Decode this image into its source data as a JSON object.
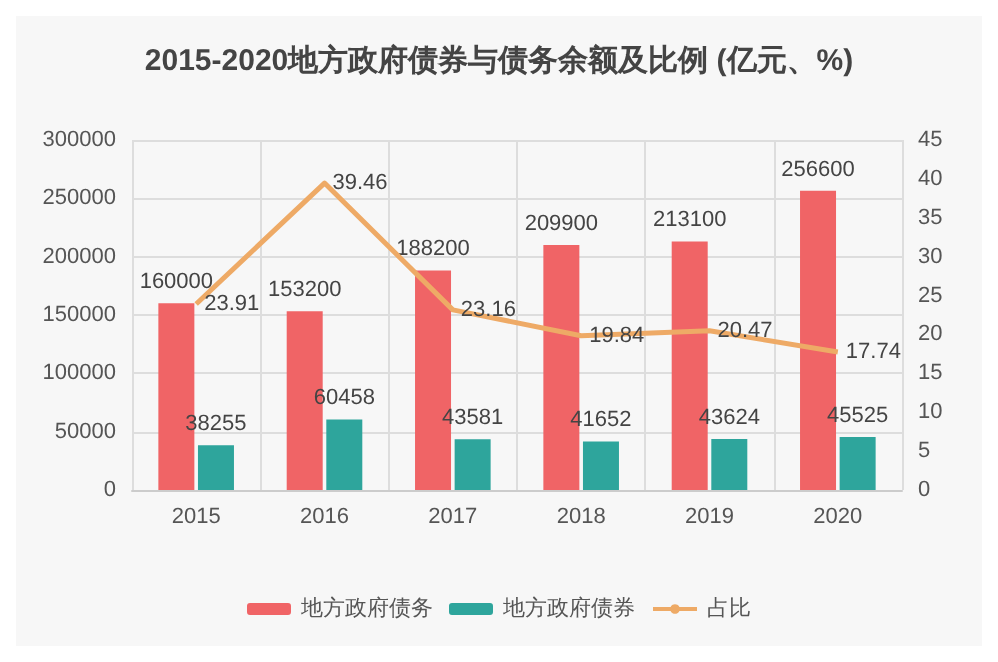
{
  "chart_data": {
    "type": "bar",
    "title": "2015-2020地方政府债券与债务余额及比例 (亿元、%)",
    "categories": [
      "2015",
      "2016",
      "2017",
      "2018",
      "2019",
      "2020"
    ],
    "series": [
      {
        "name": "地方政府债务",
        "color": "#f06466",
        "values": [
          160000,
          153200,
          188200,
          209900,
          213100,
          256600
        ]
      },
      {
        "name": "地方政府债券",
        "color": "#2ea59c",
        "values": [
          38255,
          60458,
          43581,
          41652,
          43624,
          45525
        ]
      },
      {
        "name": "占比",
        "type": "line",
        "axis": "y2",
        "color": "#eeaa66",
        "values": [
          23.91,
          39.46,
          23.16,
          19.84,
          20.47,
          17.74
        ]
      }
    ],
    "ylim": [
      0,
      300000
    ],
    "yticks": [
      0,
      50000,
      100000,
      150000,
      200000,
      250000,
      300000
    ],
    "y2lim": [
      0,
      45
    ],
    "y2ticks": [
      0,
      5,
      10,
      15,
      20,
      25,
      30,
      35,
      40,
      45
    ],
    "data_labels": true,
    "grid": true,
    "legend": "bottom",
    "marker": "none",
    "line_style": "solid"
  }
}
